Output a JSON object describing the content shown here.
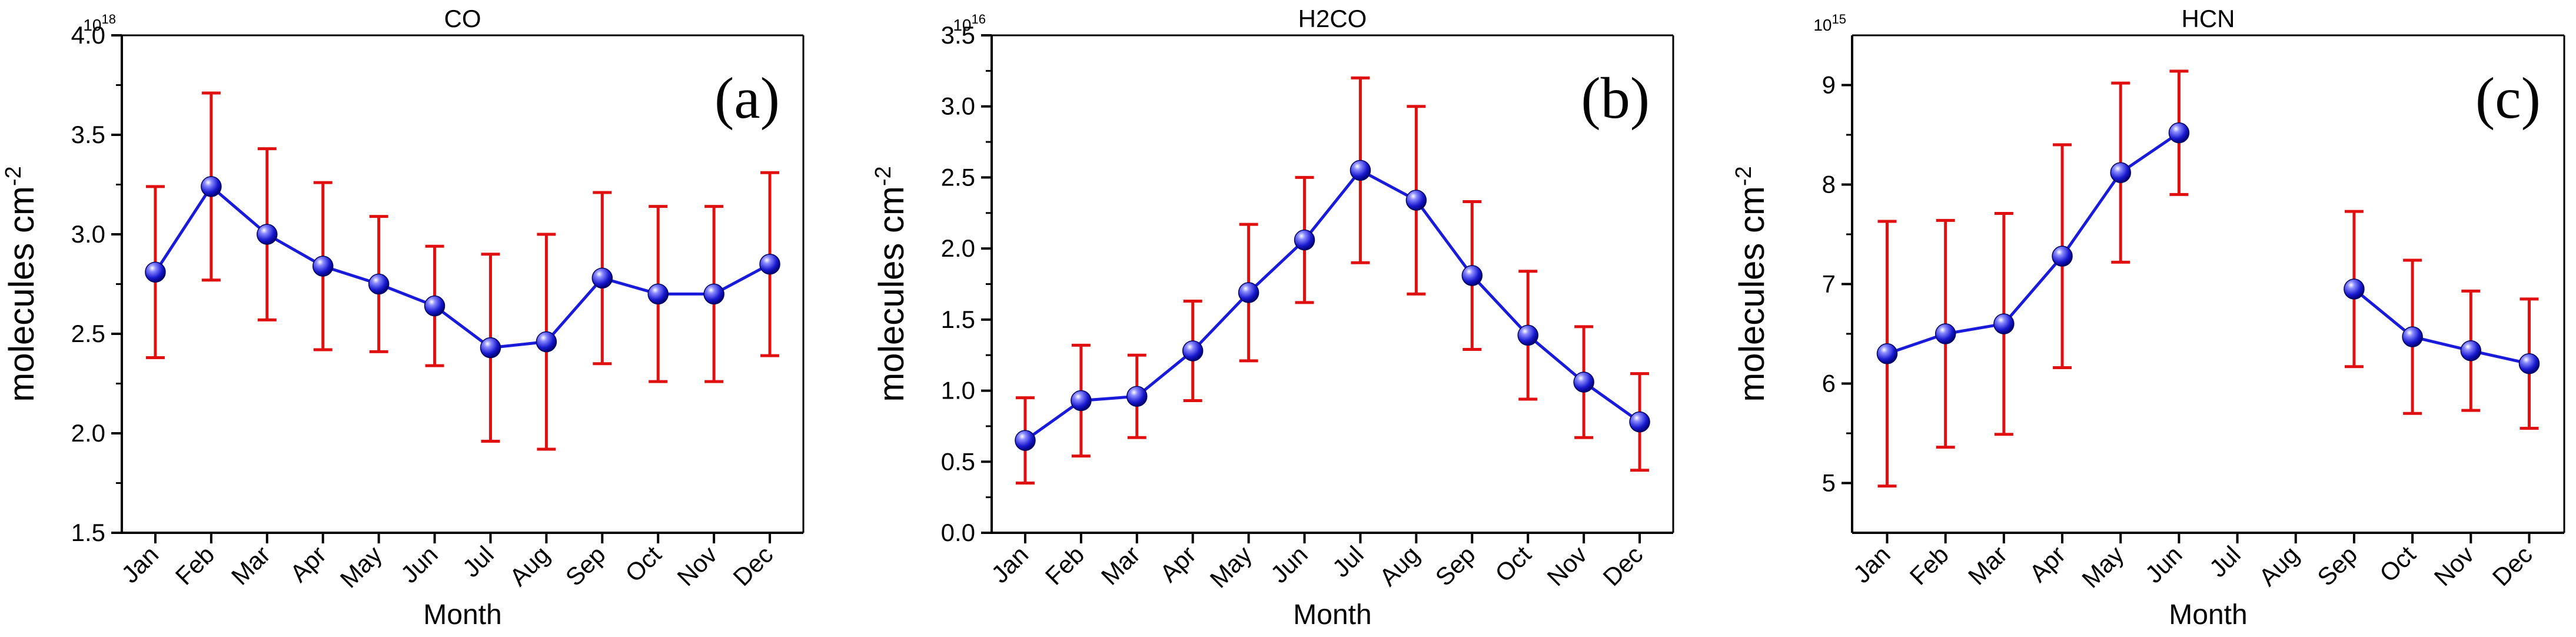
{
  "chart_data": [
    {
      "type": "line",
      "title": "CO",
      "panel_label": "(a)",
      "xlabel": "Month",
      "ylabel": "molecules cm",
      "ylabel_superscript": "-2",
      "multiplier": "10",
      "multiplier_exponent": "18",
      "categories": [
        "Jan",
        "Feb",
        "Mar",
        "Apr",
        "May",
        "Jun",
        "Jul",
        "Aug",
        "Sep",
        "Oct",
        "Nov",
        "Dec"
      ],
      "ylim": [
        1.5,
        4.0
      ],
      "yticks": [
        1.5,
        2.0,
        2.5,
        3.0,
        3.5,
        4.0
      ],
      "ytick_labels": [
        "1.5",
        "2.0",
        "2.5",
        "3.0",
        "3.5",
        "4.0"
      ],
      "series": [
        {
          "name": "CO",
          "values": [
            2.81,
            3.24,
            3.0,
            2.84,
            2.75,
            2.64,
            2.43,
            2.46,
            2.78,
            2.7,
            2.7,
            2.85
          ],
          "errors": [
            0.43,
            0.47,
            0.43,
            0.42,
            0.34,
            0.3,
            0.47,
            0.54,
            0.43,
            0.44,
            0.44,
            0.46
          ]
        }
      ],
      "line_color": "#1a1adb",
      "marker_color": "#2020e0",
      "error_color": "#e01010"
    },
    {
      "type": "line",
      "title": "H2CO",
      "panel_label": "(b)",
      "xlabel": "Month",
      "ylabel": "molecules cm",
      "ylabel_superscript": "-2",
      "multiplier": "10",
      "multiplier_exponent": "16",
      "categories": [
        "Jan",
        "Feb",
        "Mar",
        "Apr",
        "May",
        "Jun",
        "Jul",
        "Aug",
        "Sep",
        "Oct",
        "Nov",
        "Dec"
      ],
      "ylim": [
        0.0,
        3.5
      ],
      "yticks": [
        0.0,
        0.5,
        1.0,
        1.5,
        2.0,
        2.5,
        3.0,
        3.5
      ],
      "ytick_labels": [
        "0.0",
        "0.5",
        "1.0",
        "1.5",
        "2.0",
        "2.5",
        "3.0",
        "3.5"
      ],
      "series": [
        {
          "name": "H2CO",
          "values": [
            0.65,
            0.93,
            0.96,
            1.28,
            1.69,
            2.06,
            2.55,
            2.34,
            1.81,
            1.39,
            1.06,
            0.78
          ],
          "errors": [
            0.3,
            0.39,
            0.29,
            0.35,
            0.48,
            0.44,
            0.65,
            0.66,
            0.52,
            0.45,
            0.39,
            0.34
          ]
        }
      ],
      "line_color": "#1a1adb",
      "marker_color": "#2020e0",
      "error_color": "#e01010"
    },
    {
      "type": "line",
      "title": "HCN",
      "panel_label": "(c)",
      "xlabel": "Month",
      "ylabel": "molecules cm",
      "ylabel_superscript": "-2",
      "multiplier": "10",
      "multiplier_exponent": "15",
      "categories": [
        "Jan",
        "Feb",
        "Mar",
        "Apr",
        "May",
        "Jun",
        "Jul",
        "Aug",
        "Sep",
        "Oct",
        "Nov",
        "Dec"
      ],
      "ylim": [
        4.5,
        9.5
      ],
      "yticks": [
        5,
        6,
        7,
        8,
        9
      ],
      "ytick_labels": [
        "5",
        "6",
        "7",
        "8",
        "9"
      ],
      "series": [
        {
          "name": "HCN",
          "values": [
            6.3,
            6.5,
            6.6,
            7.28,
            8.12,
            8.52,
            null,
            null,
            6.95,
            6.47,
            6.33,
            6.2
          ],
          "errors": [
            1.33,
            1.14,
            1.11,
            1.12,
            0.9,
            0.62,
            null,
            null,
            0.78,
            0.77,
            0.6,
            0.65
          ]
        }
      ],
      "line_color": "#1a1adb",
      "marker_color": "#2020e0",
      "error_color": "#e01010"
    }
  ]
}
